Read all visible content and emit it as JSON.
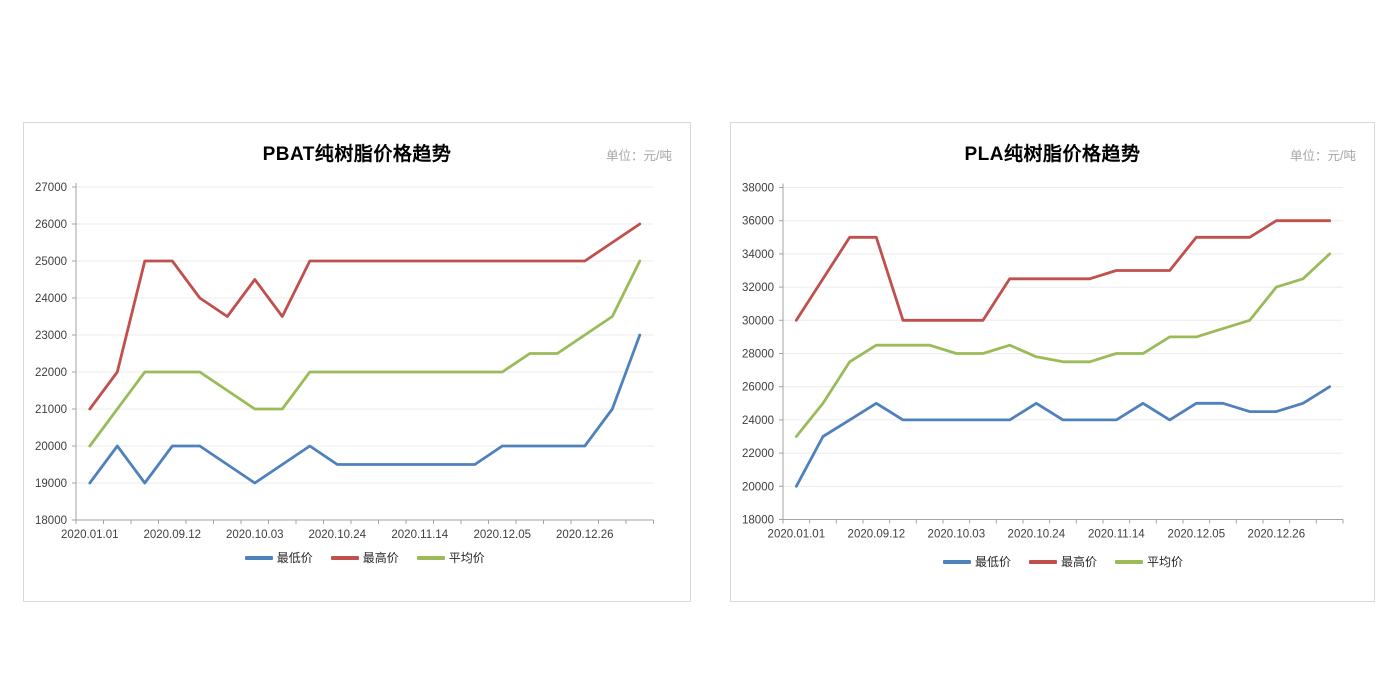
{
  "page": {
    "background": "#ffffff"
  },
  "chart_data": [
    {
      "id": "pbat",
      "type": "line",
      "title": "PBAT纯树脂价格趋势",
      "unit_label": "单位：元/吨",
      "y_axis": {
        "min": 18000,
        "max": 27000,
        "step": 1000
      },
      "grid": true,
      "legend_position": "bottom",
      "n_points": 21,
      "x_tick_labels": [
        "2020.01.01",
        "2020.09.12",
        "2020.10.03",
        "2020.10.24",
        "2020.11.14",
        "2020.12.05",
        "2020.12.26"
      ],
      "x_label_indices": [
        0,
        3,
        6,
        9,
        12,
        15,
        18
      ],
      "series": [
        {
          "name": "最低价",
          "color": "#4f81bd",
          "values": [
            19000,
            20000,
            19000,
            20000,
            20000,
            19500,
            19000,
            19500,
            20000,
            19500,
            19500,
            19500,
            19500,
            19500,
            19500,
            20000,
            20000,
            20000,
            20000,
            21000,
            23000
          ]
        },
        {
          "name": "最高价",
          "color": "#c0504d",
          "values": [
            21000,
            22000,
            25000,
            25000,
            24000,
            23500,
            24500,
            23500,
            25000,
            25000,
            25000,
            25000,
            25000,
            25000,
            25000,
            25000,
            25000,
            25000,
            25000,
            25500,
            26000
          ]
        },
        {
          "name": "平均价",
          "color": "#9bbb59",
          "values": [
            20000,
            21000,
            22000,
            22000,
            22000,
            21500,
            21000,
            21000,
            22000,
            22000,
            22000,
            22000,
            22000,
            22000,
            22000,
            22000,
            22500,
            22500,
            23000,
            23500,
            25000
          ]
        }
      ]
    },
    {
      "id": "pla",
      "type": "line",
      "title": "PLA纯树脂价格趋势",
      "unit_label": "单位：元/吨",
      "y_axis": {
        "min": 18000,
        "max": 38000,
        "step": 2000
      },
      "grid": true,
      "legend_position": "bottom",
      "n_points": 21,
      "x_tick_labels": [
        "2020.01.01",
        "2020.09.12",
        "2020.10.03",
        "2020.10.24",
        "2020.11.14",
        "2020.12.05",
        "2020.12.26"
      ],
      "x_label_indices": [
        0,
        3,
        6,
        9,
        12,
        15,
        18
      ],
      "series": [
        {
          "name": "最低价",
          "color": "#4f81bd",
          "values": [
            20000,
            23000,
            24000,
            25000,
            24000,
            24000,
            24000,
            24000,
            24000,
            25000,
            24000,
            24000,
            24000,
            25000,
            24000,
            25000,
            25000,
            24500,
            24500,
            25000,
            26000
          ]
        },
        {
          "name": "最高价",
          "color": "#c0504d",
          "values": [
            30000,
            32500,
            35000,
            35000,
            30000,
            30000,
            30000,
            30000,
            32500,
            32500,
            32500,
            32500,
            33000,
            33000,
            33000,
            35000,
            35000,
            35000,
            36000,
            36000,
            36000
          ]
        },
        {
          "name": "平均价",
          "color": "#9bbb59",
          "values": [
            23000,
            25000,
            27500,
            28500,
            28500,
            28500,
            28000,
            28000,
            28500,
            27800,
            27500,
            27500,
            28000,
            28000,
            29000,
            29000,
            29500,
            30000,
            32000,
            32500,
            34000
          ]
        }
      ]
    }
  ],
  "style": {
    "gridline_color": "#ebebeb",
    "axis_color": "#a3a3a3",
    "tick_text_color": "#3f3f3f"
  }
}
